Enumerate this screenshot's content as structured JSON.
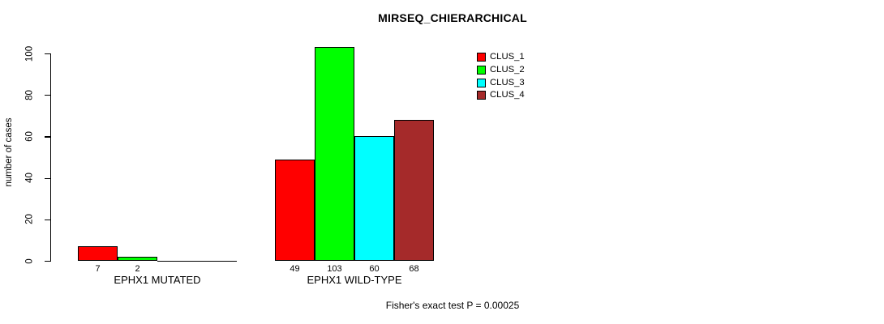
{
  "chart_data": {
    "type": "bar",
    "title": "MIRSEQ_CHIERARCHICAL",
    "ylabel": "number of cases",
    "xlabel": "",
    "ylim": [
      0,
      100
    ],
    "yticks": [
      0,
      20,
      40,
      60,
      80,
      100
    ],
    "categories": [
      "EPHX1 MUTATED",
      "EPHX1 WILD-TYPE"
    ],
    "series": [
      {
        "name": "CLUS_1",
        "color": "#ff0000",
        "values": [
          7,
          49
        ]
      },
      {
        "name": "CLUS_2",
        "color": "#00ff00",
        "values": [
          2,
          103
        ]
      },
      {
        "name": "CLUS_3",
        "color": "#00ffff",
        "values": [
          0,
          60
        ]
      },
      {
        "name": "CLUS_4",
        "color": "#a52a2a",
        "values": [
          0,
          68
        ]
      }
    ],
    "bar_value_labels": [
      [
        "7",
        "2",
        "",
        ""
      ],
      [
        "49",
        "103",
        "60",
        "68"
      ]
    ],
    "legend_position": "top-right",
    "grid": false,
    "annotation": "Fisher's exact test P = 0.00025"
  },
  "colors": {
    "background": "#ffffff",
    "axis": "#000000",
    "text": "#000000"
  }
}
